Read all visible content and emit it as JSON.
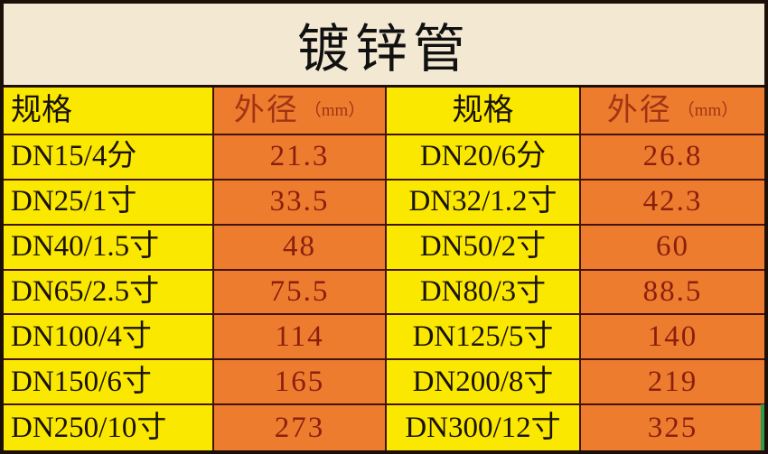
{
  "title": "镀锌管",
  "header": {
    "spec_label": "规格",
    "od_label": "外径",
    "od_unit": "（mm）"
  },
  "rows": [
    {
      "cells": [
        "DN15/4分",
        "21.3",
        "DN20/6分",
        "26.8"
      ]
    },
    {
      "cells": [
        "DN25/1寸",
        "33.5",
        "DN32/1.2寸",
        "42.3"
      ]
    },
    {
      "cells": [
        "DN40/1.5寸",
        "48",
        "DN50/2寸",
        "60"
      ]
    },
    {
      "cells": [
        "DN65/2.5寸",
        "75.5",
        "DN80/3寸",
        "88.5"
      ]
    },
    {
      "cells": [
        "DN100/4寸",
        "114",
        "DN125/5寸",
        "140"
      ]
    },
    {
      "cells": [
        "DN150/6寸",
        "165",
        "DN200/8寸",
        "219"
      ]
    },
    {
      "cells": [
        "DN250/10寸",
        "273",
        "DN300/12寸",
        "325"
      ]
    }
  ],
  "colors": {
    "spec_bg": "#fbe800",
    "od_bg": "#ed7c2f",
    "title_bg": "#f3e9d2",
    "od_text": "#8b1f0e",
    "grid_line": "#43130a",
    "selection_green": "#2e9b4e"
  },
  "chart_data": {
    "type": "table",
    "title": "镀锌管",
    "columns": [
      "规格",
      "外径（mm）",
      "规格",
      "外径（mm）"
    ],
    "specs": [
      "DN15/4分",
      "DN20/6分",
      "DN25/1寸",
      "DN32/1.2寸",
      "DN40/1.5寸",
      "DN50/2寸",
      "DN65/2.5寸",
      "DN80/3寸",
      "DN100/4寸",
      "DN125/5寸",
      "DN150/6寸",
      "DN200/8寸",
      "DN250/10寸",
      "DN300/12寸"
    ],
    "outer_diameters_mm": [
      21.3,
      26.8,
      33.5,
      42.3,
      48,
      60,
      75.5,
      88.5,
      114,
      140,
      165,
      219,
      273,
      325
    ]
  }
}
